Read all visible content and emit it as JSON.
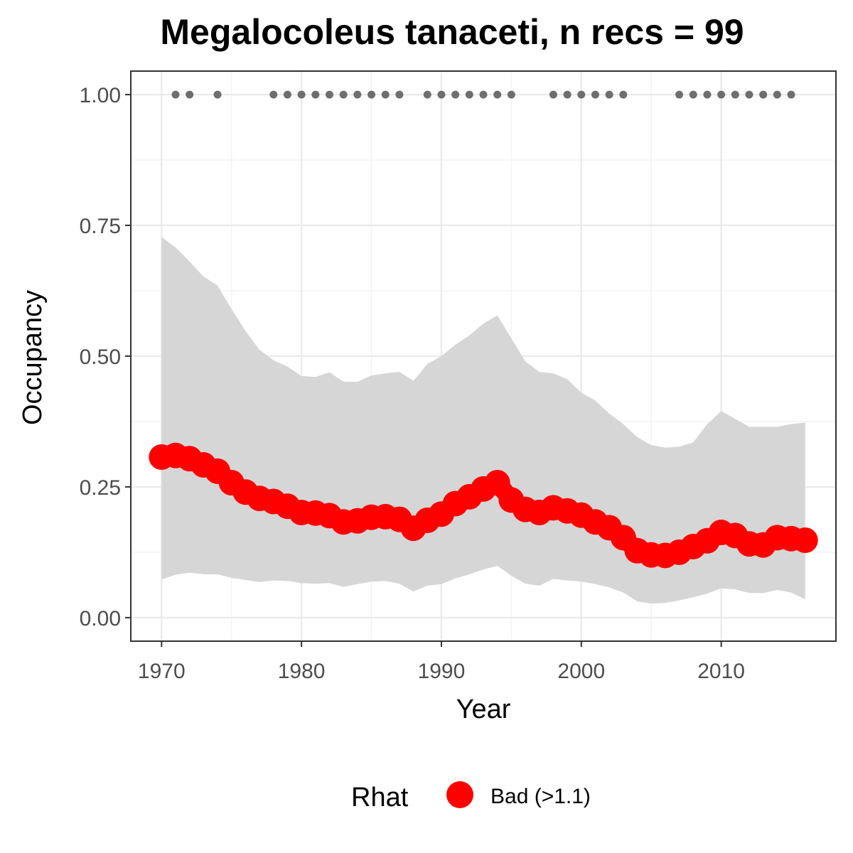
{
  "chart_data": {
    "type": "line",
    "title": "Megalocoleus tanaceti, n recs = 99",
    "xlabel": "Year",
    "ylabel": "Occupancy",
    "xlim": [
      1967.8,
      2018.2
    ],
    "ylim": [
      -0.045,
      1.045
    ],
    "x_ticks": [
      1970,
      1980,
      1990,
      2000,
      2010
    ],
    "y_ticks": [
      0,
      0.25,
      0.5,
      0.75,
      1.0
    ],
    "x_tick_labels": [
      "1970",
      "1980",
      "1990",
      "2000",
      "2010"
    ],
    "y_tick_labels": [
      "0.00",
      "0.25",
      "0.50",
      "0.75",
      "1.00"
    ],
    "grid": true,
    "x": [
      1970,
      1971,
      1972,
      1973,
      1974,
      1975,
      1976,
      1977,
      1978,
      1979,
      1980,
      1981,
      1982,
      1983,
      1984,
      1985,
      1986,
      1987,
      1988,
      1989,
      1990,
      1991,
      1992,
      1993,
      1994,
      1995,
      1996,
      1997,
      1998,
      1999,
      2000,
      2001,
      2002,
      2003,
      2004,
      2005,
      2006,
      2007,
      2008,
      2009,
      2010,
      2011,
      2012,
      2013,
      2014,
      2015,
      2016
    ],
    "series": [
      {
        "name": "Bad (>1.1)",
        "values": [
          0.307,
          0.31,
          0.304,
          0.292,
          0.28,
          0.258,
          0.24,
          0.228,
          0.222,
          0.213,
          0.201,
          0.2,
          0.195,
          0.183,
          0.185,
          0.192,
          0.193,
          0.188,
          0.171,
          0.186,
          0.198,
          0.218,
          0.231,
          0.246,
          0.258,
          0.225,
          0.207,
          0.201,
          0.21,
          0.204,
          0.196,
          0.183,
          0.172,
          0.153,
          0.128,
          0.12,
          0.119,
          0.125,
          0.136,
          0.147,
          0.163,
          0.157,
          0.141,
          0.139,
          0.153,
          0.151,
          0.148
        ]
      }
    ],
    "band": {
      "upper": [
        0.728,
        0.708,
        0.681,
        0.652,
        0.635,
        0.59,
        0.548,
        0.512,
        0.492,
        0.48,
        0.462,
        0.46,
        0.469,
        0.451,
        0.451,
        0.463,
        0.467,
        0.47,
        0.453,
        0.485,
        0.5,
        0.522,
        0.54,
        0.562,
        0.578,
        0.534,
        0.49,
        0.47,
        0.467,
        0.456,
        0.43,
        0.415,
        0.39,
        0.37,
        0.345,
        0.33,
        0.325,
        0.327,
        0.335,
        0.37,
        0.395,
        0.38,
        0.365,
        0.365,
        0.365,
        0.37,
        0.373
      ],
      "lower": [
        0.073,
        0.082,
        0.086,
        0.083,
        0.083,
        0.076,
        0.072,
        0.068,
        0.071,
        0.07,
        0.066,
        0.065,
        0.066,
        0.059,
        0.064,
        0.069,
        0.07,
        0.065,
        0.05,
        0.061,
        0.064,
        0.075,
        0.083,
        0.092,
        0.099,
        0.08,
        0.065,
        0.061,
        0.074,
        0.071,
        0.069,
        0.064,
        0.058,
        0.048,
        0.031,
        0.027,
        0.028,
        0.033,
        0.039,
        0.046,
        0.056,
        0.054,
        0.047,
        0.047,
        0.053,
        0.048,
        0.035
      ]
    },
    "record_years": [
      1971,
      1972,
      1974,
      1978,
      1979,
      1980,
      1981,
      1982,
      1983,
      1984,
      1985,
      1986,
      1987,
      1989,
      1990,
      1991,
      1992,
      1993,
      1994,
      1995,
      1998,
      1999,
      2000,
      2001,
      2002,
      2003,
      2007,
      2008,
      2009,
      2010,
      2011,
      2012,
      2013,
      2014,
      2015
    ],
    "record_y": 1.0,
    "legend": {
      "title": "Rhat",
      "entries": [
        "Bad (>1.1)"
      ],
      "position": "bottom"
    },
    "colors": {
      "points": "#ff0000",
      "band": "#d6d6d6",
      "records": "#6e6e6e",
      "grid_major": "#ebebeb",
      "grid_minor": "#f3f3f3",
      "panel_border": "#333333",
      "tick_label": "#4d4d4d"
    }
  }
}
